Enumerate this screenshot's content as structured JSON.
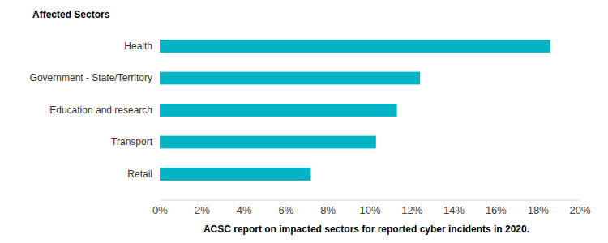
{
  "chart_data": {
    "type": "bar",
    "orientation": "horizontal",
    "title": "Affected Sectors",
    "caption": "ACSC report on impacted sectors for reported cyber incidents in 2020.",
    "categories": [
      "Health",
      "Government - State/Territory",
      "Education and research",
      "Transport",
      "Retail"
    ],
    "values": [
      18.6,
      12.4,
      11.3,
      10.3,
      7.2
    ],
    "color": "#00b4c6",
    "xlim": [
      0,
      20
    ],
    "xticks": [
      {
        "value": 0,
        "label": "0%"
      },
      {
        "value": 2,
        "label": "2%"
      },
      {
        "value": 4,
        "label": "4%"
      },
      {
        "value": 6,
        "label": "6%"
      },
      {
        "value": 8,
        "label": "8%"
      },
      {
        "value": 10,
        "label": "10%"
      },
      {
        "value": 12,
        "label": "12%"
      },
      {
        "value": 14,
        "label": "14%"
      },
      {
        "value": 16,
        "label": "16%"
      },
      {
        "value": 18,
        "label": "18%"
      },
      {
        "value": 20,
        "label": "20%"
      }
    ],
    "grid": false
  }
}
